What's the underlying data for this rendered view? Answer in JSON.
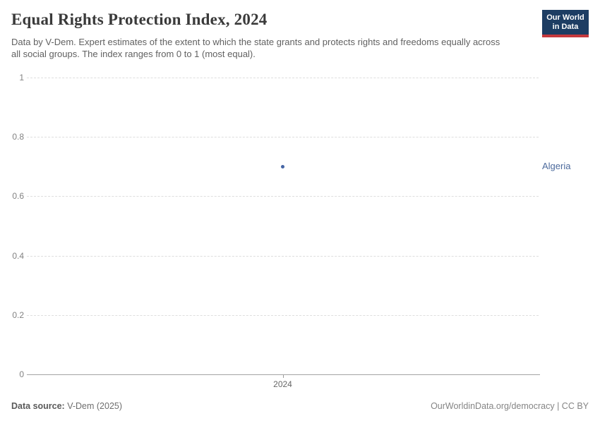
{
  "header": {
    "title": "Equal Rights Protection Index, 2024",
    "subtitle": "Data by V-Dem. Expert estimates of the extent to which the state grants and protects rights and freedoms equally across all social groups. The index ranges from 0 to 1 (most equal).",
    "logo": {
      "line1": "Our World",
      "line2": "in Data",
      "bg_color": "#1d3d63",
      "stripe_color": "#c5393d"
    }
  },
  "chart_data": {
    "type": "scatter",
    "title": "Equal Rights Protection Index, 2024",
    "subtitle": "Data by V-Dem. Expert estimates of the extent to which the state grants and protects rights and freedoms equally across all social groups. The index ranges from 0 to 1 (most equal).",
    "series": [
      {
        "name": "Algeria",
        "x": [
          2024
        ],
        "values": [
          0.7
        ],
        "color": "#4c6a9c"
      }
    ],
    "x_ticks": [
      "2024"
    ],
    "y_ticks": [
      0,
      0.2,
      0.4,
      0.6,
      0.8,
      1
    ],
    "y_tick_labels": [
      "0",
      "0.2",
      "0.4",
      "0.6",
      "0.8",
      "1"
    ],
    "ylim": [
      0,
      1
    ],
    "xlabel": "",
    "ylabel": "",
    "grid": "horizontal-dashed",
    "legend_position": "right-of-point",
    "point_color": "#4565a5",
    "label_color": "#4c6a9c"
  },
  "footer": {
    "source_label": "Data source:",
    "source_value": "V-Dem (2025)",
    "link": "OurWorldinData.org/democracy | CC BY"
  }
}
